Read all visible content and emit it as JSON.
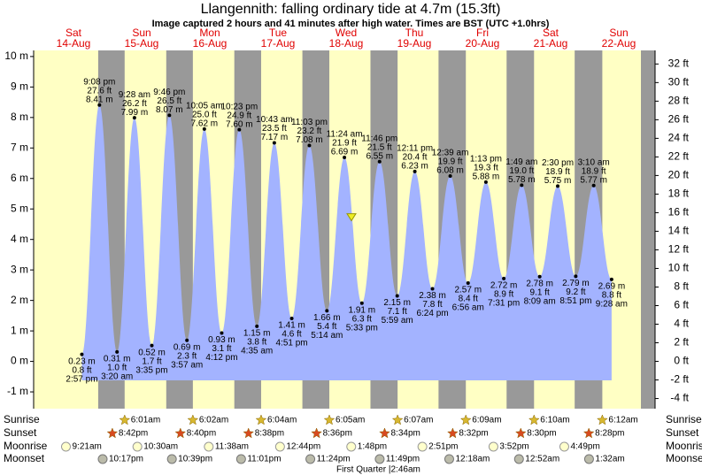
{
  "chart_data": {
    "type": "tide",
    "title": "Llangennith: falling  ordinary tide at 4.7m (15.3ft)",
    "subtitle": "Image captured 2 hours and 41 minutes after high water. Times are BST (UTC +1.0hrs)",
    "current_level": 4.7,
    "ylim": [
      -1.55,
      10.2
    ],
    "yticks": [
      {
        "value": -1,
        "label": "-1 m"
      },
      {
        "value": 0,
        "label": "0 m"
      },
      {
        "value": 1,
        "label": "1 m"
      },
      {
        "value": 2,
        "label": "2 m"
      },
      {
        "value": 3,
        "label": "3 m"
      },
      {
        "value": 4,
        "label": "4 m"
      },
      {
        "value": 5,
        "label": "5 m"
      },
      {
        "value": 6,
        "label": "6 m"
      },
      {
        "value": 7,
        "label": "7 m"
      },
      {
        "value": 8,
        "label": "8 m"
      },
      {
        "value": 9,
        "label": "9 m"
      },
      {
        "value": 10,
        "label": "10 m"
      }
    ],
    "y2lim": [
      -5.09,
      33.46
    ],
    "y2ticks": [
      {
        "value": -4,
        "label": "-4 ft"
      },
      {
        "value": -2,
        "label": "-2 ft"
      },
      {
        "value": 0,
        "label": "0 ft"
      },
      {
        "value": 2,
        "label": "2 ft"
      },
      {
        "value": 4,
        "label": "4 ft"
      },
      {
        "value": 6,
        "label": "6 ft"
      },
      {
        "value": 8,
        "label": "8 ft"
      },
      {
        "value": 10,
        "label": "10 ft"
      },
      {
        "value": 12,
        "label": "12 ft"
      },
      {
        "value": 14,
        "label": "14 ft"
      },
      {
        "value": 16,
        "label": "16 ft"
      },
      {
        "value": 18,
        "label": "18 ft"
      },
      {
        "value": 20,
        "label": "20 ft"
      },
      {
        "value": 22,
        "label": "22 ft"
      },
      {
        "value": 24,
        "label": "24 ft"
      },
      {
        "value": 26,
        "label": "26 ft"
      },
      {
        "value": 28,
        "label": "28 ft"
      },
      {
        "value": 30,
        "label": "30 ft"
      },
      {
        "value": 32,
        "label": "32 ft"
      }
    ],
    "colors": {
      "day": "#ffffc4",
      "night": "#999999",
      "tide": "#a3b3ff",
      "day_label": "#e00000"
    },
    "row_labels": {
      "sunrise": "Sunrise",
      "sunset": "Sunset",
      "moonrise": "Moonrise",
      "moonset": "Moonset"
    },
    "moon_phase": "First Quarter |2:46am",
    "days": [
      {
        "weekday": "Sat",
        "date": "14-Aug",
        "sunset": "8:42pm",
        "moonrise": "9:21am",
        "moonset": "10:17pm",
        "tides": [
          {
            "time": "2:57 pm",
            "value": 0.23,
            "value_label": "0.23 m",
            "ft": 0.8,
            "ft_label": "0.8 ft"
          },
          {
            "time": "9:08 pm",
            "value": 8.41,
            "value_label": "8.41 m",
            "ft": 27.6,
            "ft_label": "27.6 ft"
          }
        ]
      },
      {
        "weekday": "Sun",
        "date": "15-Aug",
        "sunrise": "6:01am",
        "sunset": "8:40pm",
        "moonrise": "10:30am",
        "moonset": "10:39pm",
        "tides": [
          {
            "time": "3:20 am",
            "value": 0.31,
            "value_label": "0.31 m",
            "ft": 1.0,
            "ft_label": "1.0 ft"
          },
          {
            "time": "9:28 am",
            "value": 7.99,
            "value_label": "7.99 m",
            "ft": 26.2,
            "ft_label": "26.2 ft"
          },
          {
            "time": "3:35 pm",
            "value": 0.52,
            "value_label": "0.52 m",
            "ft": 1.7,
            "ft_label": "1.7 ft"
          },
          {
            "time": "9:46 pm",
            "value": 8.07,
            "value_label": "8.07 m",
            "ft": 26.5,
            "ft_label": "26.5 ft"
          }
        ]
      },
      {
        "weekday": "Mon",
        "date": "16-Aug",
        "sunrise": "6:02am",
        "sunset": "8:38pm",
        "moonrise": "11:38am",
        "moonset": "11:01pm",
        "tides": [
          {
            "time": "3:57 am",
            "value": 0.69,
            "value_label": "0.69 m",
            "ft": 2.3,
            "ft_label": "2.3 ft"
          },
          {
            "time": "10:05 am",
            "value": 7.62,
            "value_label": "7.62 m",
            "ft": 25.0,
            "ft_label": "25.0 ft"
          },
          {
            "time": "4:12 pm",
            "value": 0.93,
            "value_label": "0.93 m",
            "ft": 3.1,
            "ft_label": "3.1 ft"
          },
          {
            "time": "10:23 pm",
            "value": 7.6,
            "value_label": "7.60 m",
            "ft": 24.9,
            "ft_label": "24.9 ft"
          }
        ]
      },
      {
        "weekday": "Tue",
        "date": "17-Aug",
        "sunrise": "6:04am",
        "sunset": "8:36pm",
        "moonrise": "12:44pm",
        "moonset": "11:24pm",
        "tides": [
          {
            "time": "4:35 am",
            "value": 1.15,
            "value_label": "1.15 m",
            "ft": 3.8,
            "ft_label": "3.8 ft"
          },
          {
            "time": "10:43 am",
            "value": 7.17,
            "value_label": "7.17 m",
            "ft": 23.5,
            "ft_label": "23.5 ft"
          },
          {
            "time": "4:51 pm",
            "value": 1.41,
            "value_label": "1.41 m",
            "ft": 4.6,
            "ft_label": "4.6 ft"
          },
          {
            "time": "11:03 pm",
            "value": 7.08,
            "value_label": "7.08 m",
            "ft": 23.2,
            "ft_label": "23.2 ft"
          }
        ]
      },
      {
        "weekday": "Wed",
        "date": "18-Aug",
        "sunrise": "6:05am",
        "sunset": "8:34pm",
        "moonrise": "1:48pm",
        "moonset": "11:49pm",
        "tides": [
          {
            "time": "5:14 am",
            "value": 1.66,
            "value_label": "1.66 m",
            "ft": 5.4,
            "ft_label": "5.4 ft"
          },
          {
            "time": "11:24 am",
            "value": 6.69,
            "value_label": "6.69 m",
            "ft": 21.9,
            "ft_label": "21.9 ft"
          },
          {
            "time": "5:33 pm",
            "value": 1.91,
            "value_label": "1.91 m",
            "ft": 6.3,
            "ft_label": "6.3 ft"
          },
          {
            "time": "11:46 pm",
            "value": 6.55,
            "value_label": "6.55 m",
            "ft": 21.5,
            "ft_label": "21.5 ft"
          }
        ]
      },
      {
        "weekday": "Thu",
        "date": "19-Aug",
        "sunrise": "6:07am",
        "sunset": "8:32pm",
        "moonrise": "2:51pm",
        "tides": [
          {
            "time": "5:59 am",
            "value": 2.15,
            "value_label": "2.15 m",
            "ft": 7.1,
            "ft_label": "7.1 ft"
          },
          {
            "time": "12:11 pm",
            "value": 6.23,
            "value_label": "6.23 m",
            "ft": 20.4,
            "ft_label": "20.4 ft"
          },
          {
            "time": "6:24 pm",
            "value": 2.38,
            "value_label": "2.38 m",
            "ft": 7.8,
            "ft_label": "7.8 ft"
          }
        ]
      },
      {
        "weekday": "Fri",
        "date": "20-Aug",
        "sunrise": "6:09am",
        "sunset": "8:30pm",
        "moonrise": "3:52pm",
        "moonset": "12:18am",
        "tides": [
          {
            "time": "12:39 am",
            "value": 6.08,
            "value_label": "6.08 m",
            "ft": 19.9,
            "ft_label": "19.9 ft"
          },
          {
            "time": "6:56 am",
            "value": 2.57,
            "value_label": "2.57 m",
            "ft": 8.4,
            "ft_label": "8.4 ft"
          },
          {
            "time": "1:13 pm",
            "value": 5.88,
            "value_label": "5.88 m",
            "ft": 19.3,
            "ft_label": "19.3 ft"
          },
          {
            "time": "7:31 pm",
            "value": 2.72,
            "value_label": "2.72 m",
            "ft": 8.9,
            "ft_label": "8.9 ft"
          }
        ]
      },
      {
        "weekday": "Sat",
        "date": "21-Aug",
        "sunrise": "6:10am",
        "sunset": "8:28pm",
        "moonrise": "4:49pm",
        "moonset": "12:52am",
        "tides": [
          {
            "time": "1:49 am",
            "value": 5.78,
            "value_label": "5.78 m",
            "ft": 19.0,
            "ft_label": "19.0 ft"
          },
          {
            "time": "8:09 am",
            "value": 2.78,
            "value_label": "2.78 m",
            "ft": 9.1,
            "ft_label": "9.1 ft"
          },
          {
            "time": "2:30 pm",
            "value": 5.75,
            "value_label": "5.75 m",
            "ft": 18.9,
            "ft_label": "18.9 ft"
          },
          {
            "time": "8:51 pm",
            "value": 2.79,
            "value_label": "2.79 m",
            "ft": 9.2,
            "ft_label": "9.2 ft"
          }
        ]
      },
      {
        "weekday": "Sun",
        "date": "22-Aug",
        "sunrise": "6:12am",
        "moonset": "1:32am",
        "tides": [
          {
            "time": "3:10 am",
            "value": 5.77,
            "value_label": "5.77 m",
            "ft": 18.9,
            "ft_label": "18.9 ft"
          },
          {
            "time": "9:28 am",
            "value": 2.69,
            "value_label": "2.69 m",
            "ft": 8.8,
            "ft_label": "8.8 ft"
          }
        ]
      }
    ]
  }
}
